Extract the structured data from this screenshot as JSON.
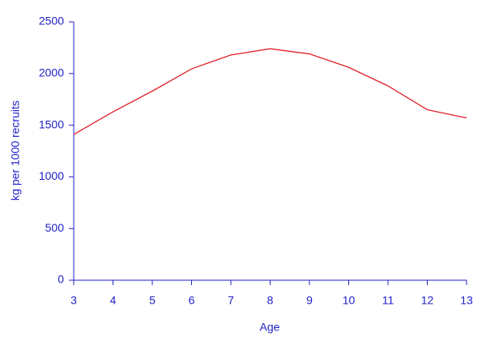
{
  "chart_data": {
    "type": "line",
    "x_label": "Age",
    "y_label": "kg per 1000 recruits",
    "x": [
      3,
      4,
      5,
      6,
      7,
      8,
      9,
      10,
      11,
      12,
      13
    ],
    "series": [
      {
        "color": "#e0202a",
        "values": [
          1410,
          1630,
          1830,
          2045,
          2180,
          2240,
          2190,
          2060,
          1880,
          1650,
          1570
        ]
      }
    ],
    "xlim": [
      3,
      13
    ],
    "xticks": [
      3,
      4,
      5,
      6,
      7,
      8,
      9,
      10,
      11,
      12,
      13
    ],
    "ylim": [
      0,
      2500
    ],
    "yticks": [
      0,
      500,
      1000,
      1500,
      2000,
      2500
    ],
    "axis_color": "#1f22c8"
  }
}
